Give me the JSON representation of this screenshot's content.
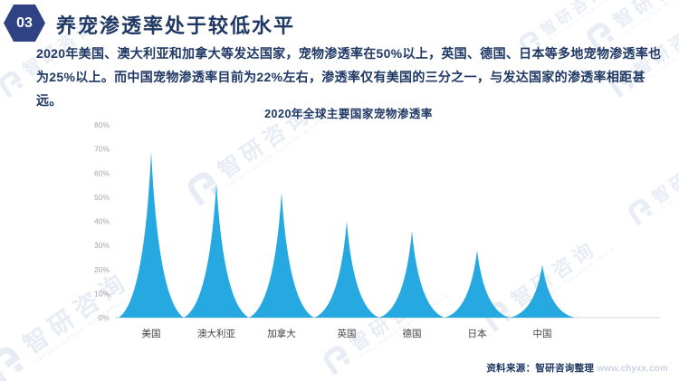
{
  "header": {
    "badge": "03",
    "title": "养宠渗透率处于较低水平"
  },
  "intro": {
    "lines": [
      "2020年美国、澳大利亚和加拿大等发达国家，宠物渗透率在50%以上，英国、德国、日本等多地宠物渗透率也",
      "为25%以上。而中国宠物渗透率目前为22%左右，渗透率仅有美国的三分之一，与发达国家的渗透率相距甚远。"
    ]
  },
  "chart_data": {
    "type": "bar",
    "style": "triangle-spike",
    "title": "2020年全球主要国家宠物渗透率",
    "categories": [
      "美国",
      "澳大利亚",
      "加拿大",
      "英国",
      "德国",
      "日本",
      "中国"
    ],
    "values": [
      69,
      56,
      52,
      40,
      36,
      28,
      22
    ],
    "unit": "%",
    "ylim": [
      0,
      80
    ],
    "ytick_step": 10,
    "ytick_labels": [
      "0%",
      "10%",
      "20%",
      "30%",
      "40%",
      "50%",
      "60%",
      "70%",
      "80%"
    ],
    "grid": false,
    "legend": false,
    "bar_color": "#26A9E0"
  },
  "footer": {
    "source": "资料来源：智研咨询整理",
    "site": "www.chyxx.com"
  },
  "watermark": {
    "brand": "智研咨询",
    "sub": "INTELLIGENCE RESEARCH GROUP"
  },
  "colors": {
    "navy_text": "#1F3864",
    "badge_navy": "#2E4284",
    "peak_cyan": "#26A9E0",
    "axis_line": "#D9D9D9",
    "tick_gray": "#A6A6A6",
    "category_gray": "#404040",
    "site_gray": "#B7C2D8",
    "watermark_blue": "#D8E1F0"
  }
}
